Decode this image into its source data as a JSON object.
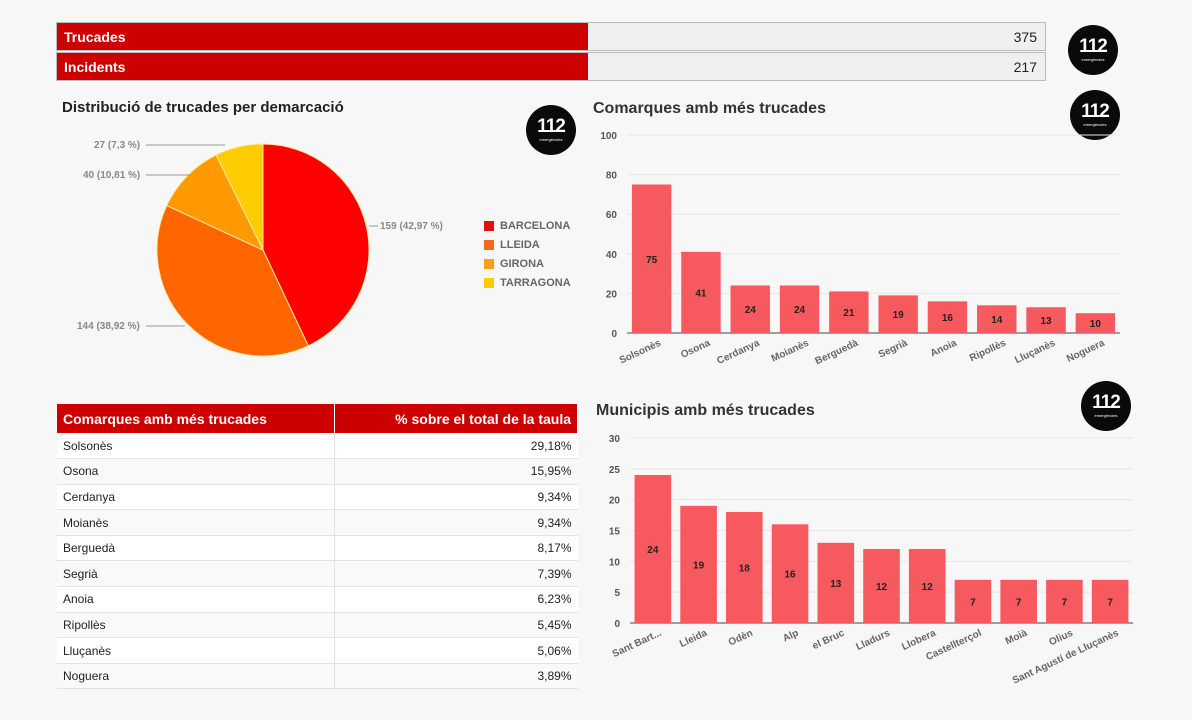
{
  "kpis": [
    {
      "label": "Trucades",
      "value": "375"
    },
    {
      "label": "Incidents",
      "value": "217"
    }
  ],
  "logo": {
    "text": "112",
    "sub": "emergències"
  },
  "colors": {
    "accent": "#cc0000",
    "bar": "#f65a5f",
    "barcelona": "#ff0000",
    "lleida": "#ff6600",
    "girona": "#ff9900",
    "tarragona": "#ffcc00"
  },
  "table": {
    "headers": [
      "Comarques amb més trucades",
      "% sobre el total de la taula"
    ],
    "rows": [
      [
        "Solsonès",
        "29,18%"
      ],
      [
        "Osona",
        "15,95%"
      ],
      [
        "Cerdanya",
        "9,34%"
      ],
      [
        "Moianès",
        "9,34%"
      ],
      [
        "Berguedà",
        "8,17%"
      ],
      [
        "Segrià",
        "7,39%"
      ],
      [
        "Anoia",
        "6,23%"
      ],
      [
        "Ripollès",
        "5,45%"
      ],
      [
        "Lluçanès",
        "5,06%"
      ],
      [
        "Noguera",
        "3,89%"
      ]
    ]
  },
  "chart_data": [
    {
      "type": "pie",
      "title": "Distribució de trucades per demarcació",
      "legend_position": "right",
      "slices": [
        {
          "name": "BARCELONA",
          "value": 159,
          "label": "159 (42,97 %)",
          "color": "#ff0000"
        },
        {
          "name": "LLEIDA",
          "value": 144,
          "label": "144 (38,92 %)",
          "color": "#ff6600"
        },
        {
          "name": "GIRONA",
          "value": 40,
          "label": "40 (10,81 %)",
          "color": "#ff9900"
        },
        {
          "name": "TARRAGONA",
          "value": 27,
          "label": "27 (7,3 %)",
          "color": "#ffcc00"
        }
      ]
    },
    {
      "type": "bar",
      "title": "Comarques amb més trucades",
      "ylim": [
        0,
        100
      ],
      "yticks": [
        0,
        20,
        40,
        60,
        80,
        100
      ],
      "grid": true,
      "categories": [
        "Solsonès",
        "Osona",
        "Cerdanya",
        "Moianès",
        "Berguedà",
        "Segrià",
        "Anoia",
        "Ripollès",
        "Lluçanès",
        "Noguera"
      ],
      "values": [
        75,
        41,
        24,
        24,
        21,
        19,
        16,
        14,
        13,
        10
      ]
    },
    {
      "type": "bar",
      "title": "Municipis amb més trucades",
      "ylim": [
        0,
        30
      ],
      "yticks": [
        0,
        5,
        10,
        15,
        20,
        25,
        30
      ],
      "grid": true,
      "categories": [
        "Sant Bart...",
        "Lleida",
        "Odèn",
        "Alp",
        "el Bruc",
        "Lladurs",
        "Llobera",
        "Castellterçol",
        "Moià",
        "Olius",
        "Sant Agustí de Lluçanès"
      ],
      "values": [
        24,
        19,
        18,
        16,
        13,
        12,
        12,
        7,
        7,
        7,
        7
      ]
    }
  ]
}
